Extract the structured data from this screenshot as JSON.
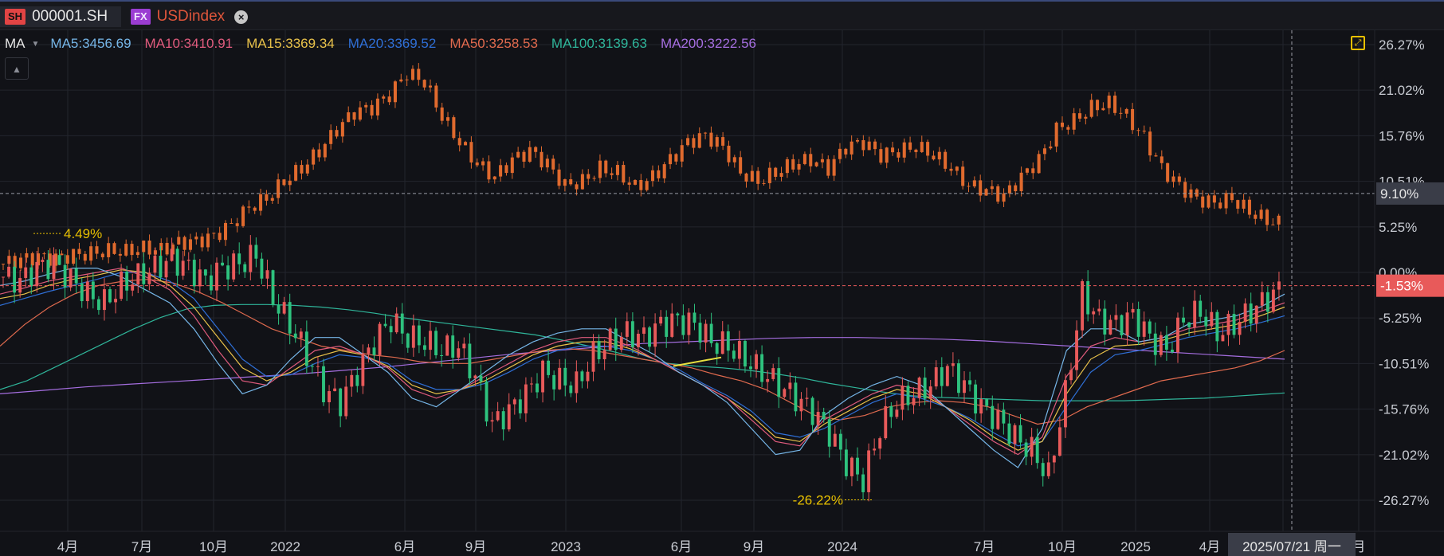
{
  "tabs": [
    {
      "badge": "SH",
      "label": "000001.SH"
    },
    {
      "badge": "FX",
      "label": "USDindex",
      "close_icon": "close-icon"
    }
  ],
  "legend": {
    "title": "MA",
    "items": [
      {
        "label": "MA5:3456.69",
        "color": "#76b6e8"
      },
      {
        "label": "MA10:3410.91",
        "color": "#e05b7d"
      },
      {
        "label": "MA15:3369.34",
        "color": "#e8c14a"
      },
      {
        "label": "MA20:3369.52",
        "color": "#2f6fd6"
      },
      {
        "label": "MA50:3258.53",
        "color": "#e06a4e"
      },
      {
        "label": "MA100:3139.63",
        "color": "#2fb59a"
      },
      {
        "label": "MA200:3222.56",
        "color": "#a56ee0"
      }
    ]
  },
  "icons": {
    "collapse": "chevron-up-icon",
    "expand": "expand-icon"
  },
  "chart_data": {
    "type": "candlestick",
    "y_scale": "percent",
    "ylim": [
      -29,
      29
    ],
    "y_ticks": [
      "26.27%",
      "21.02%",
      "15.76%",
      "10.51%",
      "5.25%",
      "0.00%",
      "-5.25%",
      "-10.51%",
      "-15.76%",
      "-21.02%",
      "-26.27%"
    ],
    "x_ticks": [
      "4月",
      "7月",
      "10月",
      "2022",
      "6月",
      "9月",
      "2023",
      "6月",
      "9月",
      "2024",
      "7月",
      "10月",
      "2025",
      "4月",
      "",
      "月"
    ],
    "crosshair_label": "2025/07/21 周一",
    "markers": [
      {
        "label": "9.10%",
        "value": 9.1,
        "color": "#3a3d48",
        "text_color": "#e6e6e6"
      },
      {
        "label": "-1.53%",
        "value": -1.53,
        "color": "#e85a5a",
        "text_color": "#ffffff"
      }
    ],
    "annotations": [
      {
        "label": "4.49%",
        "color": "#e8c000"
      },
      {
        "label": "-26.22%",
        "color": "#e8c000"
      }
    ],
    "series": [
      {
        "name": "USDindex",
        "color": "#e06a2e",
        "values": [
          1.0,
          1.5,
          1.8,
          1.6,
          2.0,
          2.2,
          2.5,
          2.4,
          2.8,
          2.6,
          3.4,
          3.6,
          4.2,
          5.5,
          7.5,
          8.5,
          10.5,
          12.0,
          14.0,
          16.5,
          18.5,
          19.0,
          20.5,
          23.0,
          22.0,
          18.0,
          15.0,
          12.5,
          11.0,
          13.0,
          14.0,
          12.5,
          10.0,
          10.5,
          12.0,
          11.5,
          9.8,
          11.0,
          13.0,
          15.0,
          15.8,
          14.5,
          11.5,
          10.5,
          11.5,
          12.5,
          13.0,
          12.0,
          14.5,
          15.0,
          13.5,
          14.0,
          14.5,
          13.5,
          12.0,
          10.0,
          9.5,
          8.8,
          11.0,
          13.0,
          16.5,
          17.5,
          19.0,
          19.5,
          18.0,
          15.5,
          12.0,
          10.0,
          8.5,
          8.0,
          8.5,
          7.0,
          6.0,
          5.5
        ]
      },
      {
        "name": "000001.SH",
        "colors": {
          "up": "#e85a5a",
          "down": "#2ec27e"
        },
        "values": [
          -0.5,
          -1.0,
          0.5,
          1.0,
          -0.8,
          -2.5,
          -3.5,
          -1.5,
          -0.5,
          0.5,
          1.5,
          0.5,
          -1.0,
          0.5,
          1.0,
          2.0,
          -3.0,
          -6.0,
          -9.5,
          -13.5,
          -15.0,
          -11.5,
          -8.0,
          -5.5,
          -7.5,
          -8.0,
          -9.0,
          -8.5,
          -12.0,
          -17.5,
          -16.0,
          -14.0,
          -11.5,
          -12.5,
          -13.0,
          -9.5,
          -8.0,
          -7.0,
          -7.5,
          -6.0,
          -5.5,
          -6.0,
          -8.0,
          -8.5,
          -10.0,
          -11.5,
          -13.0,
          -14.5,
          -16.0,
          -18.5,
          -22.0,
          -24.0,
          -18.0,
          -15.0,
          -14.0,
          -13.0,
          -11.0,
          -13.0,
          -15.5,
          -17.0,
          -19.0,
          -20.5,
          -23.5,
          -14.0,
          -2.5,
          -5.5,
          -6.0,
          -5.0,
          -7.5,
          -9.0,
          -5.5,
          -4.5,
          -7.0,
          -6.0,
          -4.5,
          -3.0,
          -1.5
        ]
      },
      {
        "name": "MA5",
        "color": "#76b6e8",
        "values": [
          -1.5,
          -1.0,
          -0.2,
          0.5,
          0.5,
          -0.5,
          -2.0,
          -3.5,
          -6.5,
          -10.5,
          -14.0,
          -13.0,
          -10.0,
          -7.5,
          -7.5,
          -9.5,
          -11.5,
          -14.5,
          -15.5,
          -13.5,
          -11.5,
          -9.5,
          -8.0,
          -7.0,
          -6.5,
          -6.5,
          -8.0,
          -9.5,
          -11.5,
          -13.0,
          -15.0,
          -18.0,
          -21.0,
          -20.5,
          -16.5,
          -14.5,
          -13.0,
          -12.0,
          -13.0,
          -15.5,
          -18.0,
          -20.5,
          -22.5,
          -18.0,
          -9.0,
          -6.5,
          -6.5,
          -8.0,
          -7.5,
          -6.0,
          -5.5,
          -5.0,
          -4.0,
          -2.5
        ]
      },
      {
        "name": "MA10",
        "color": "#e05b7d",
        "values": [
          -2.5,
          -1.8,
          -1.0,
          -0.5,
          0.0,
          0.5,
          -0.5,
          -2.0,
          -5.0,
          -9.0,
          -12.5,
          -13.0,
          -11.0,
          -9.0,
          -8.5,
          -9.5,
          -11.0,
          -13.5,
          -14.5,
          -13.5,
          -12.0,
          -10.5,
          -9.0,
          -8.0,
          -7.5,
          -7.5,
          -8.5,
          -10.0,
          -11.5,
          -13.0,
          -14.5,
          -17.0,
          -19.5,
          -20.0,
          -17.0,
          -15.5,
          -14.0,
          -13.0,
          -13.5,
          -15.5,
          -17.5,
          -19.5,
          -21.0,
          -19.0,
          -12.0,
          -8.5,
          -7.5,
          -8.0,
          -7.5,
          -6.5,
          -6.0,
          -5.5,
          -4.5,
          -3.5
        ]
      },
      {
        "name": "MA15",
        "color": "#e8c14a",
        "values": [
          -3.0,
          -2.5,
          -1.5,
          -0.8,
          -0.3,
          0.3,
          0.0,
          -1.5,
          -4.0,
          -7.5,
          -11.0,
          -12.5,
          -11.5,
          -9.8,
          -9.0,
          -9.5,
          -10.8,
          -13.0,
          -14.0,
          -13.5,
          -12.5,
          -11.0,
          -9.5,
          -8.5,
          -8.0,
          -8.0,
          -8.8,
          -10.0,
          -11.5,
          -13.0,
          -14.5,
          -16.5,
          -19.0,
          -19.5,
          -17.5,
          -16.0,
          -14.5,
          -13.5,
          -14.0,
          -15.5,
          -17.0,
          -19.0,
          -20.5,
          -19.5,
          -14.0,
          -10.0,
          -8.5,
          -8.3,
          -7.8,
          -7.0,
          -6.5,
          -6.0,
          -5.0,
          -4.0
        ]
      },
      {
        "name": "MA20",
        "color": "#2f6fd6",
        "values": [
          -3.8,
          -3.0,
          -2.2,
          -1.5,
          -0.8,
          0.0,
          0.0,
          -1.0,
          -3.0,
          -6.5,
          -10.0,
          -12.0,
          -11.8,
          -10.5,
          -9.5,
          -9.8,
          -10.5,
          -12.5,
          -13.5,
          -13.5,
          -12.8,
          -11.5,
          -10.0,
          -9.0,
          -8.5,
          -8.5,
          -9.0,
          -10.0,
          -11.2,
          -12.8,
          -14.2,
          -16.0,
          -18.5,
          -19.0,
          -18.0,
          -16.5,
          -15.0,
          -14.0,
          -14.5,
          -15.5,
          -16.8,
          -18.5,
          -20.0,
          -19.5,
          -15.5,
          -11.5,
          -9.5,
          -9.0,
          -8.3,
          -7.5,
          -7.0,
          -6.5,
          -5.8,
          -5.0
        ]
      },
      {
        "name": "MA50",
        "color": "#e06a4e",
        "values": [
          -8.5,
          -6.0,
          -4.0,
          -2.5,
          -1.5,
          -1.0,
          -0.8,
          -1.2,
          -2.2,
          -3.5,
          -5.0,
          -6.5,
          -7.5,
          -8.5,
          -9.0,
          -9.5,
          -9.8,
          -10.3,
          -10.5,
          -10.5,
          -10.0,
          -9.5,
          -9.0,
          -8.8,
          -9.0,
          -9.5,
          -10.0,
          -10.5,
          -11.0,
          -11.8,
          -12.5,
          -13.5,
          -15.0,
          -16.5,
          -17.0,
          -16.5,
          -15.5,
          -15.0,
          -14.8,
          -15.0,
          -15.5,
          -16.5,
          -17.5,
          -17.0,
          -15.5,
          -14.5,
          -13.5,
          -12.5,
          -12.0,
          -11.5,
          -11.0,
          -10.2,
          -9.0
        ]
      },
      {
        "name": "MA100",
        "color": "#2fb59a",
        "values": [
          -13.5,
          -12.5,
          -11.0,
          -9.5,
          -8.0,
          -6.5,
          -5.2,
          -4.2,
          -3.8,
          -3.7,
          -3.7,
          -3.8,
          -4.0,
          -4.3,
          -4.7,
          -5.2,
          -5.6,
          -6.0,
          -6.4,
          -6.8,
          -7.2,
          -7.8,
          -8.5,
          -9.2,
          -10.0,
          -10.5,
          -10.8,
          -11.0,
          -11.3,
          -11.7,
          -12.2,
          -12.8,
          -13.3,
          -13.8,
          -14.2,
          -14.4,
          -14.5,
          -14.6,
          -14.7,
          -14.8,
          -14.8,
          -14.8,
          -14.8,
          -14.7,
          -14.6,
          -14.5,
          -14.3,
          -14.1,
          -13.9
        ]
      },
      {
        "name": "MA200",
        "color": "#a56ee0",
        "values": [
          -14.0,
          -13.6,
          -13.2,
          -12.9,
          -12.6,
          -12.3,
          -12.0,
          -11.7,
          -11.3,
          -10.9,
          -10.4,
          -9.9,
          -9.4,
          -9.0,
          -8.6,
          -8.2,
          -8.0,
          -7.8,
          -7.6,
          -7.5,
          -7.5,
          -7.6,
          -7.7,
          -7.9,
          -8.2,
          -8.5,
          -8.8,
          -9.1,
          -9.4,
          -9.7,
          -10.0
        ]
      }
    ]
  }
}
